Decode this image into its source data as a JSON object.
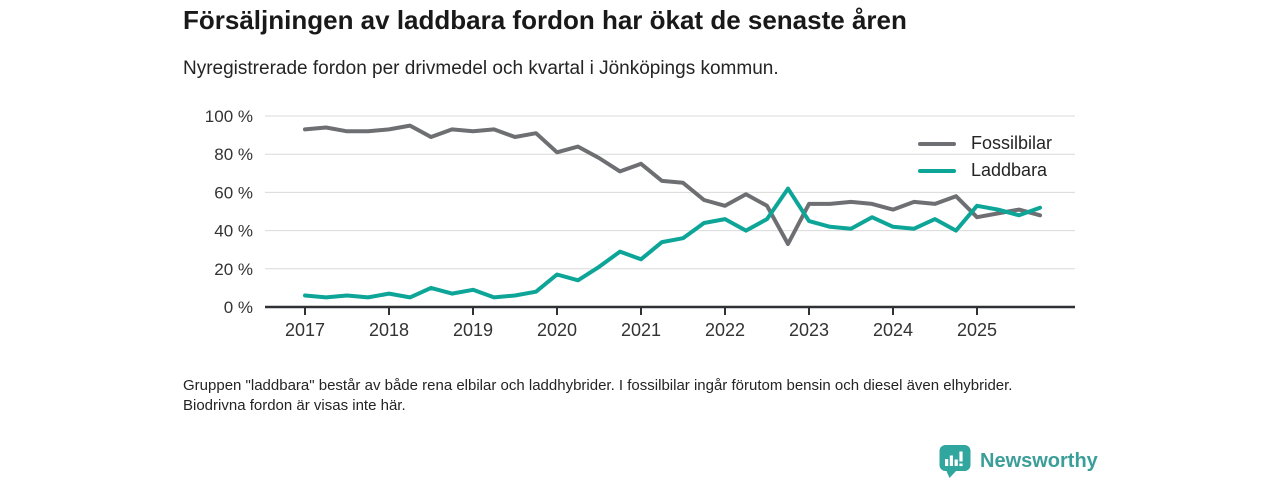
{
  "header": {
    "title": "Försäljningen av laddbara fordon har ökat de senaste åren",
    "subtitle": "Nyregistrerade fordon per drivmedel och kvartal i Jönköpings kommun."
  },
  "chart_data": {
    "type": "line",
    "unit": "percent",
    "x_start": "2017 Q1",
    "x_interval": "quarter",
    "x_tick_labels": [
      "2017",
      "2018",
      "2019",
      "2020",
      "2021",
      "2022",
      "2023",
      "2024",
      "2025"
    ],
    "ytick_values": [
      0,
      20,
      40,
      60,
      80,
      100
    ],
    "ytick_labels": [
      "0 %",
      "20 %",
      "40 %",
      "60 %",
      "80 %",
      "100 %"
    ],
    "ylim": [
      0,
      100
    ],
    "grid": true,
    "legend_position": "top-right",
    "series": [
      {
        "name": "Fossilbilar",
        "color": "#6e6f72",
        "values": [
          93,
          94,
          92,
          92,
          93,
          95,
          89,
          93,
          92,
          93,
          89,
          91,
          81,
          84,
          78,
          71,
          75,
          66,
          65,
          56,
          53,
          59,
          53,
          33,
          54,
          54,
          55,
          54,
          51,
          55,
          54,
          58,
          47,
          49,
          51,
          48
        ]
      },
      {
        "name": "Laddbara",
        "color": "#0da598",
        "values": [
          6,
          5,
          6,
          5,
          7,
          5,
          10,
          7,
          9,
          5,
          6,
          8,
          17,
          14,
          21,
          29,
          25,
          34,
          36,
          44,
          46,
          40,
          46,
          62,
          45,
          42,
          41,
          47,
          42,
          41,
          46,
          40,
          53,
          51,
          48,
          52
        ]
      }
    ]
  },
  "footer": {
    "note": "Gruppen \"laddbara\" består av både rena elbilar och laddhybrider. I fossilbilar ingår förutom bensin och diesel även elhybrider. Biodrivna fordon är visas inte här."
  },
  "branding": {
    "name": "Newsworthy"
  }
}
